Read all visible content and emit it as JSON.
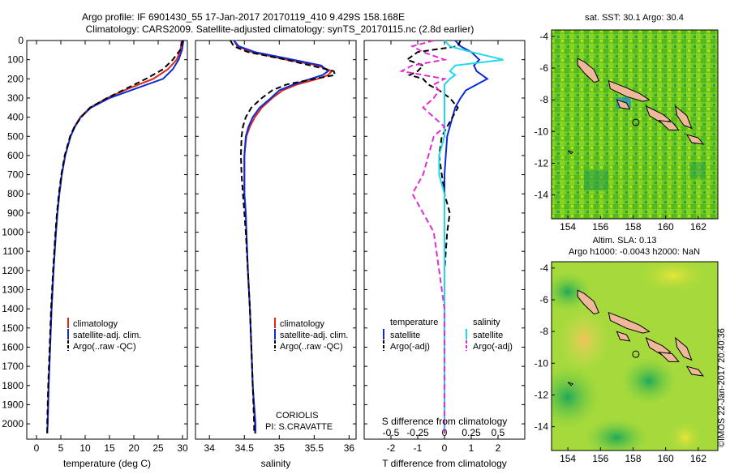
{
  "title": {
    "line1": "Argo profile: IF 6901430_55 17-Jan-2017 20170119_410 9.429S 158.168E",
    "line2": "Climatology: CARS2009. Satellite-adjusted climatology: synTS_20170115.nc (2.8d earlier)"
  },
  "colors": {
    "climatology": "#e0261a",
    "satellite": "#0a2bd8",
    "argo": "#000000",
    "satellite_s": "#22d8e8",
    "argo_s": "#e22ad6",
    "land": "#f0b89a"
  },
  "chart_data": [
    {
      "type": "line",
      "id": "temperature",
      "xlabel": "temperature (deg C)",
      "ylabel": "",
      "xlim": [
        -2,
        31
      ],
      "ylim": [
        2080,
        0
      ],
      "xticks": [
        "0",
        "5",
        "10",
        "15",
        "20",
        "25",
        "30"
      ],
      "xtick_values": [
        0,
        5,
        10,
        15,
        20,
        25,
        30
      ],
      "yticks": [
        "0",
        "100",
        "200",
        "300",
        "400",
        "500",
        "600",
        "700",
        "800",
        "900",
        "1000",
        "1100",
        "1200",
        "1300",
        "1400",
        "1500",
        "1600",
        "1700",
        "1800",
        "1900",
        "2000"
      ],
      "ytick_values": [
        0,
        100,
        200,
        300,
        400,
        500,
        600,
        700,
        800,
        900,
        1000,
        1100,
        1200,
        1300,
        1400,
        1500,
        1600,
        1700,
        1800,
        1900,
        2000
      ],
      "depth": [
        0,
        50,
        100,
        150,
        200,
        250,
        300,
        350,
        400,
        450,
        500,
        600,
        700,
        800,
        900,
        1000,
        1200,
        1400,
        1600,
        1800,
        2000,
        2050
      ],
      "series": [
        {
          "name": "climatology",
          "color_key": "climatology",
          "values": [
            29.8,
            29.6,
            28.8,
            27.0,
            24.0,
            19.0,
            14.5,
            11.0,
            9.0,
            7.8,
            7.0,
            5.9,
            5.2,
            4.7,
            4.3,
            4.0,
            3.5,
            3.1,
            2.8,
            2.5,
            2.3,
            2.2
          ]
        },
        {
          "name": "satellite-adj. clim.",
          "color_key": "satellite",
          "values": [
            30.2,
            29.9,
            29.2,
            28.0,
            26.0,
            20.5,
            15.0,
            11.2,
            9.1,
            7.9,
            7.0,
            5.9,
            5.2,
            4.7,
            4.3,
            4.0,
            3.5,
            3.1,
            2.8,
            2.5,
            2.3,
            2.2
          ]
        },
        {
          "name": "Argo(..raw -QC)",
          "color_key": "argo",
          "dashed": true,
          "values": [
            30.0,
            29.5,
            28.0,
            26.0,
            22.5,
            18.5,
            14.5,
            11.0,
            9.2,
            7.8,
            6.9,
            5.8,
            5.1,
            4.6,
            4.2,
            3.9,
            3.4,
            3.0,
            2.7,
            2.4,
            2.2,
            2.2
          ]
        }
      ],
      "legend": [
        "climatology",
        "satellite-adj. clim.",
        "Argo(..raw -QC)"
      ]
    },
    {
      "type": "line",
      "id": "salinity",
      "xlabel": "salinity",
      "xlim": [
        33.8,
        36.1
      ],
      "ylim": [
        2080,
        0
      ],
      "xticks": [
        "34",
        "34.5",
        "35",
        "35.5",
        "36"
      ],
      "xtick_values": [
        34,
        34.5,
        35,
        35.5,
        36
      ],
      "depth": [
        0,
        30,
        60,
        100,
        130,
        160,
        180,
        200,
        230,
        260,
        300,
        350,
        400,
        450,
        500,
        600,
        700,
        800,
        900,
        1000,
        1200,
        1400,
        1600,
        1800,
        2000,
        2050
      ],
      "series": [
        {
          "name": "climatology",
          "color_key": "climatology",
          "values": [
            34.35,
            34.4,
            34.6,
            35.1,
            35.55,
            35.75,
            35.7,
            35.55,
            35.25,
            35.05,
            34.9,
            34.75,
            34.65,
            34.58,
            34.53,
            34.5,
            34.5,
            34.5,
            34.52,
            34.53,
            34.55,
            34.58,
            34.6,
            34.62,
            34.65,
            34.65
          ]
        },
        {
          "name": "satellite-adj. clim.",
          "color_key": "satellite",
          "values": [
            34.35,
            34.42,
            34.65,
            35.2,
            35.6,
            35.7,
            35.62,
            35.45,
            35.2,
            35.0,
            34.88,
            34.72,
            34.62,
            34.56,
            34.52,
            34.5,
            34.5,
            34.5,
            34.52,
            34.53,
            34.55,
            34.58,
            34.6,
            34.62,
            34.66,
            34.66
          ]
        },
        {
          "name": "Argo(..raw -QC)",
          "color_key": "argo",
          "dashed": true,
          "values": [
            34.3,
            34.35,
            34.55,
            35.1,
            35.45,
            35.78,
            35.8,
            35.5,
            35.1,
            34.9,
            34.75,
            34.6,
            34.52,
            34.48,
            34.46,
            34.45,
            34.46,
            34.48,
            34.5,
            34.52,
            34.55,
            34.58,
            34.6,
            34.62,
            34.64,
            34.64
          ]
        }
      ],
      "legend": [
        "climatology",
        "satellite-adj. clim.",
        "Argo(..raw -QC)"
      ],
      "annotation": [
        "CORIOLIS",
        "PI: S.CRAVATTE"
      ]
    },
    {
      "type": "line",
      "id": "difference",
      "xlabel": "T difference from climatology",
      "top_label": "S difference from climatology",
      "xlim": [
        -3,
        3
      ],
      "ylim": [
        2080,
        0
      ],
      "xticks": [
        "-2",
        "-1",
        "0",
        "1",
        "2"
      ],
      "xtick_values": [
        -2,
        -1,
        0,
        1,
        2
      ],
      "sticks": [
        "-0.5",
        "-0.25",
        "0",
        "0.25",
        "0.5"
      ],
      "stick_values": [
        -0.5,
        -0.25,
        0,
        0.25,
        0.5
      ],
      "depth": [
        0,
        30,
        60,
        100,
        130,
        160,
        180,
        200,
        230,
        260,
        300,
        350,
        400,
        450,
        500,
        600,
        700,
        800,
        900,
        1000,
        1200,
        1400,
        1600,
        1800,
        2000,
        2050
      ],
      "series": [
        {
          "name": "temperature satellite",
          "color_key": "satellite",
          "values": [
            0.4,
            0.6,
            1.0,
            1.3,
            1.1,
            1.2,
            1.4,
            1.6,
            1.2,
            0.8,
            0.6,
            0.4,
            0.3,
            0.2,
            0.1,
            0.05,
            0,
            0,
            0,
            0,
            0,
            0,
            0,
            0,
            0,
            0
          ]
        },
        {
          "name": "temperature Argo(-adj)",
          "color_key": "argo",
          "dashed": true,
          "values": [
            0.6,
            0.5,
            -1.0,
            -1.4,
            -0.8,
            -1.0,
            -1.3,
            -0.8,
            -0.6,
            -0.2,
            0.2,
            0.5,
            0.3,
            0.1,
            -0.1,
            -0.2,
            -0.1,
            0,
            0.2,
            0.1,
            0,
            0,
            0,
            0,
            0,
            0
          ]
        },
        {
          "name": "salinity satellite",
          "color_key": "satellite_s",
          "values": [
            0,
            0.05,
            0.25,
            0.55,
            0.1,
            0.05,
            0.1,
            0.05,
            0.0,
            0.0,
            0.0,
            0.0,
            0.0,
            0.0,
            0.0,
            -0.05,
            -0.05,
            0,
            0,
            0,
            0,
            0,
            0,
            0,
            0,
            0
          ]
        },
        {
          "name": "salinity Argo(-adj)",
          "color_key": "argo_s",
          "dashed": true,
          "values": [
            -0.1,
            -0.3,
            -0.2,
            0.0,
            -0.3,
            -0.4,
            -0.2,
            0.0,
            -0.1,
            -0.05,
            -0.1,
            -0.2,
            -0.1,
            0.0,
            -0.1,
            -0.15,
            -0.2,
            -0.3,
            -0.2,
            -0.1,
            -0.05,
            0,
            0,
            0,
            0,
            0
          ]
        }
      ],
      "legend_headers": [
        "temperature",
        "salinity"
      ],
      "legend": [
        "satellite",
        "Argo(-adj)",
        "satellite",
        "Argo(-adj)"
      ]
    }
  ],
  "maps": [
    {
      "id": "sst-map",
      "title": "sat. SST: 30.1  Argo: 30.4",
      "xticks": [
        "154",
        "156",
        "158",
        "160",
        "162"
      ],
      "xtick_values": [
        154,
        156,
        158,
        160,
        162
      ],
      "yticks": [
        "-4",
        "-6",
        "-8",
        "-10",
        "-12",
        "-14"
      ],
      "ytick_values": [
        -4,
        -6,
        -8,
        -10,
        -12,
        -14
      ],
      "lon_range": [
        153,
        163.2
      ],
      "lat_range": [
        -15.5,
        -3.6
      ],
      "argo_lon": 158.168,
      "argo_lat": -9.429
    },
    {
      "id": "sla-map",
      "title_line1": "Altim. SLA: 0.13",
      "title_line2": "Argo h1000: -0.0043 h2000: NaN",
      "xticks": [
        "154",
        "156",
        "158",
        "160",
        "162"
      ],
      "xtick_values": [
        154,
        156,
        158,
        160,
        162
      ],
      "yticks": [
        "-4",
        "-6",
        "-8",
        "-10",
        "-12",
        "-14"
      ],
      "ytick_values": [
        -4,
        -6,
        -8,
        -10,
        -12,
        -14
      ],
      "lon_range": [
        153,
        163.2
      ],
      "lat_range": [
        -15.5,
        -3.6
      ],
      "argo_lon": 158.168,
      "argo_lat": -9.429
    }
  ],
  "credit": "©IMOS 22-Jan-2017 20:40:36"
}
